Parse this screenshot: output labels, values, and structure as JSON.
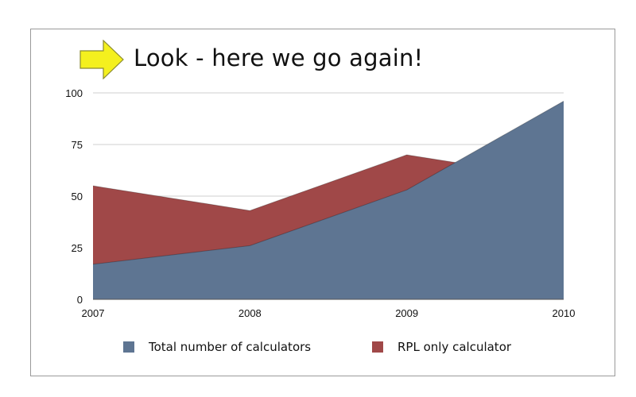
{
  "slide": {
    "title": "Look - here we go again!",
    "arrow_icon": "right-arrow-icon",
    "arrow_color": "#f4f01e"
  },
  "chart_data": {
    "type": "area",
    "title": "Look - here we go again!",
    "categories": [
      "2007",
      "2008",
      "2009",
      "2010"
    ],
    "ylim": [
      0,
      100
    ],
    "yticks": [
      "0",
      "25",
      "50",
      "75",
      "100"
    ],
    "grid": true,
    "legend_position": "bottom",
    "series": [
      {
        "name": "RPL only calculator",
        "values": [
          55,
          43,
          70,
          58
        ],
        "color": "#a04848"
      },
      {
        "name": "Total number of calculators",
        "values": [
          17,
          26,
          53,
          96
        ],
        "color": "#5e7592"
      }
    ]
  },
  "legend": {
    "items": [
      {
        "label": "Total number of calculators",
        "color": "#5e7592"
      },
      {
        "label": "RPL only calculator",
        "color": "#a04848"
      }
    ]
  }
}
